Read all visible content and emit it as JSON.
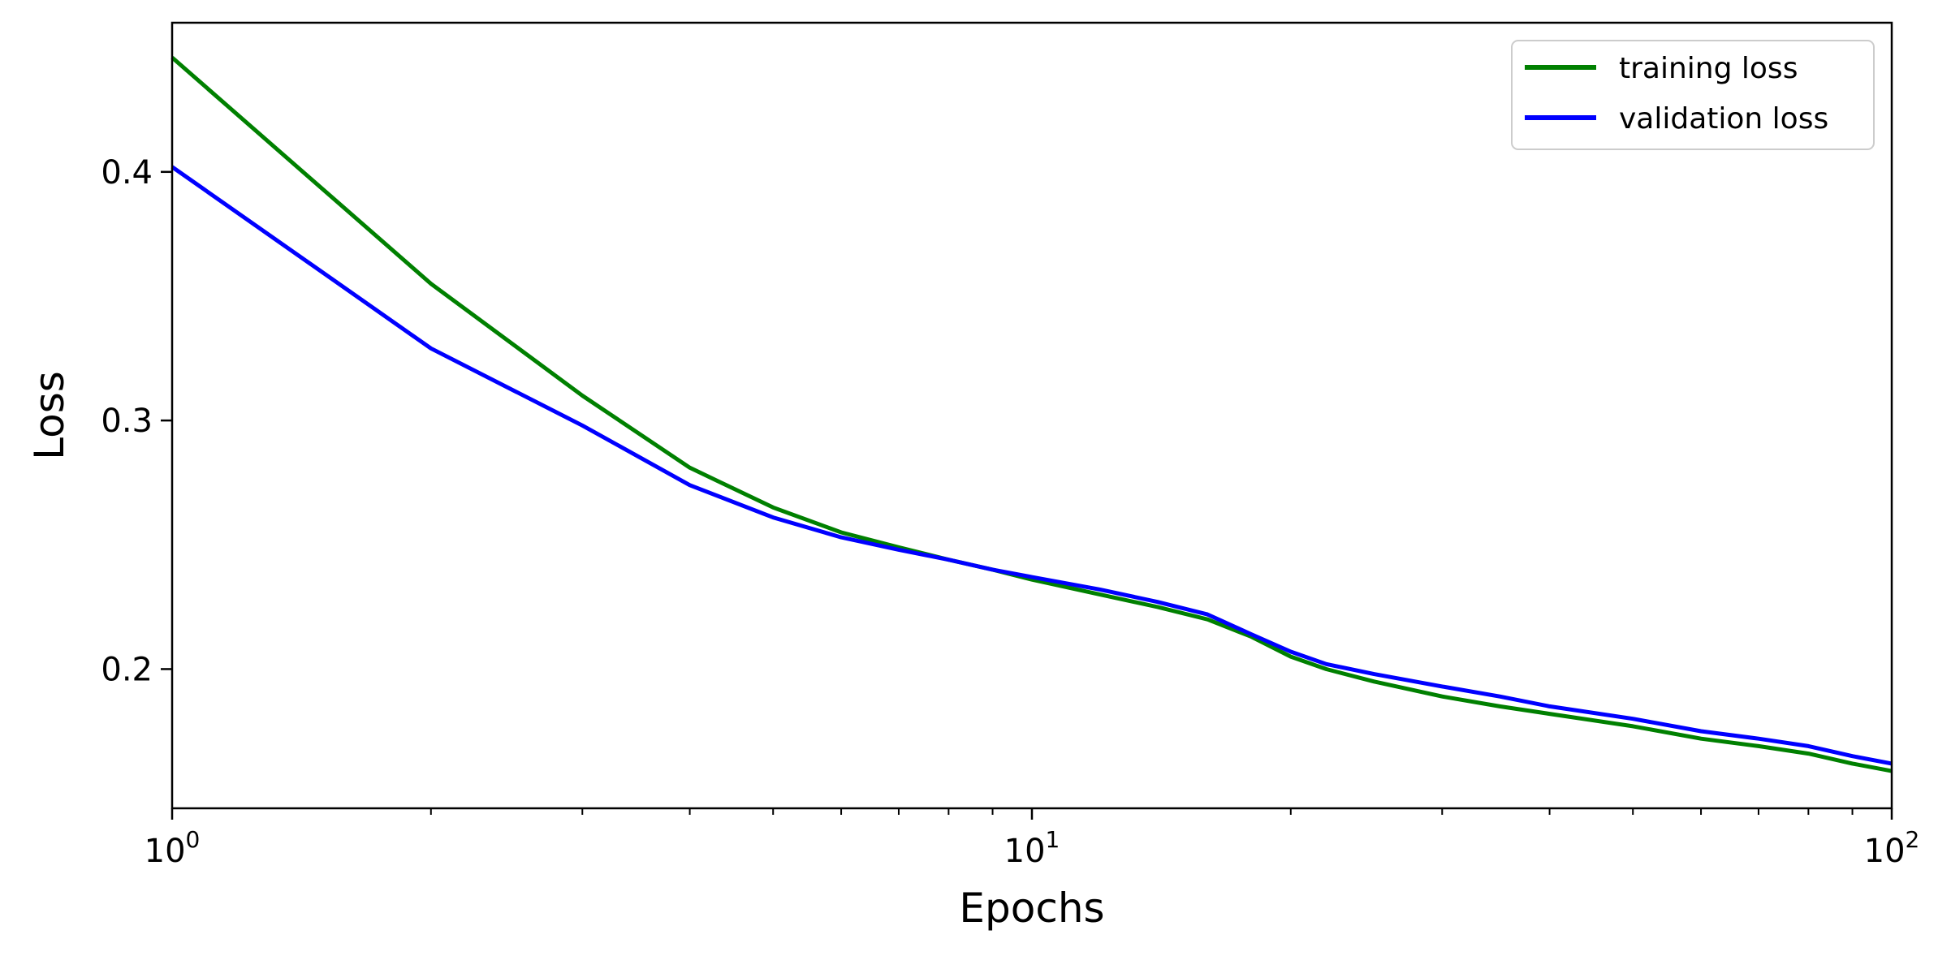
{
  "chart_data": {
    "type": "line",
    "xlabel": "Epochs",
    "ylabel": "Loss",
    "x_scale": "log",
    "xlim": [
      1,
      100
    ],
    "ylim": [
      0.144,
      0.46
    ],
    "x_ticks": [
      {
        "value": 1,
        "base": "10",
        "exp": "0"
      },
      {
        "value": 10,
        "base": "10",
        "exp": "1"
      },
      {
        "value": 100,
        "base": "10",
        "exp": "2"
      }
    ],
    "y_ticks": [
      {
        "value": 0.2,
        "label": "0.2"
      },
      {
        "value": 0.3,
        "label": "0.3"
      },
      {
        "value": 0.4,
        "label": "0.4"
      }
    ],
    "grid": false,
    "legend": {
      "position": "top-right"
    },
    "series": [
      {
        "name": "training loss",
        "color": "#008000",
        "x": [
          1,
          2,
          3,
          4,
          5,
          6,
          7,
          8,
          9,
          10,
          12,
          14,
          16,
          18,
          20,
          22,
          25,
          30,
          35,
          40,
          50,
          60,
          70,
          80,
          90,
          100
        ],
        "y": [
          0.446,
          0.355,
          0.31,
          0.281,
          0.265,
          0.255,
          0.249,
          0.244,
          0.24,
          0.236,
          0.23,
          0.225,
          0.22,
          0.213,
          0.205,
          0.2,
          0.195,
          0.189,
          0.185,
          0.182,
          0.177,
          0.172,
          0.169,
          0.166,
          0.162,
          0.159
        ]
      },
      {
        "name": "validation loss",
        "color": "#0000ff",
        "x": [
          1,
          2,
          3,
          4,
          5,
          6,
          7,
          8,
          9,
          10,
          12,
          14,
          16,
          18,
          20,
          22,
          25,
          30,
          35,
          40,
          50,
          60,
          70,
          80,
          90,
          100
        ],
        "y": [
          0.402,
          0.329,
          0.298,
          0.274,
          0.261,
          0.253,
          0.248,
          0.244,
          0.24,
          0.237,
          0.232,
          0.227,
          0.222,
          0.214,
          0.207,
          0.202,
          0.198,
          0.193,
          0.189,
          0.185,
          0.18,
          0.175,
          0.172,
          0.169,
          0.165,
          0.162
        ]
      }
    ]
  }
}
